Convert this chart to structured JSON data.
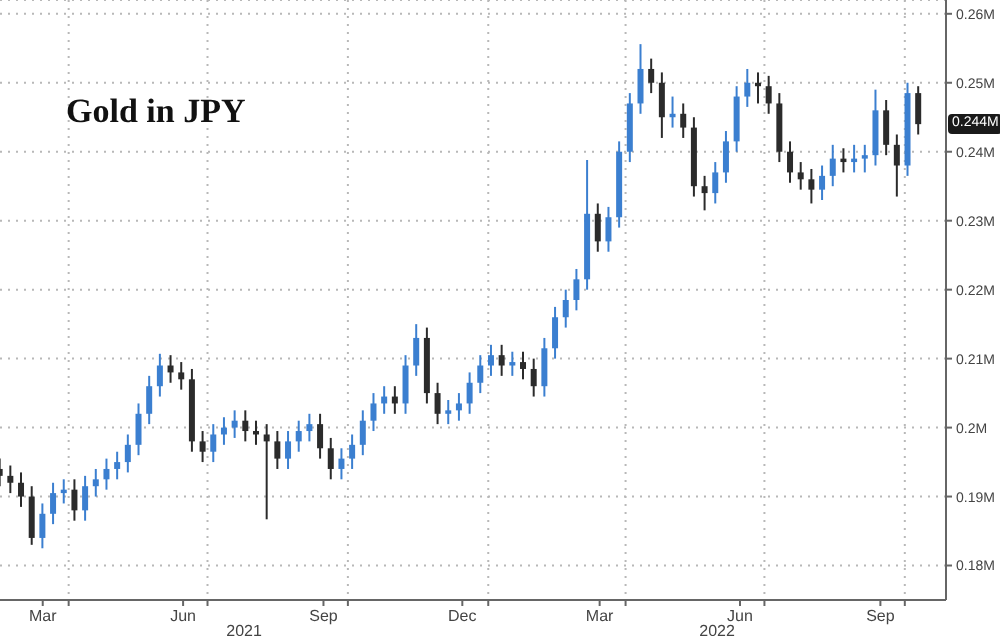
{
  "chart_data": {
    "type": "candlestick",
    "title": "Gold in JPY",
    "x": [
      "2021-02-15",
      "2021-02-22",
      "2021-03-01",
      "2021-03-08",
      "2021-03-15",
      "2021-03-22",
      "2021-03-29",
      "2021-04-05",
      "2021-04-12",
      "2021-04-19",
      "2021-04-26",
      "2021-05-03",
      "2021-05-10",
      "2021-05-17",
      "2021-05-24",
      "2021-05-31",
      "2021-06-07",
      "2021-06-14",
      "2021-06-21",
      "2021-06-28",
      "2021-07-05",
      "2021-07-12",
      "2021-07-19",
      "2021-07-26",
      "2021-08-02",
      "2021-08-09",
      "2021-08-16",
      "2021-08-23",
      "2021-08-30",
      "2021-09-06",
      "2021-09-13",
      "2021-09-20",
      "2021-09-27",
      "2021-10-04",
      "2021-10-11",
      "2021-10-18",
      "2021-10-25",
      "2021-11-01",
      "2021-11-08",
      "2021-11-15",
      "2021-11-22",
      "2021-11-29",
      "2021-12-06",
      "2021-12-13",
      "2021-12-20",
      "2021-12-27",
      "2022-01-03",
      "2022-01-10",
      "2022-01-17",
      "2022-01-24",
      "2022-01-31",
      "2022-02-07",
      "2022-02-14",
      "2022-02-21",
      "2022-02-28",
      "2022-03-07",
      "2022-03-14",
      "2022-03-21",
      "2022-03-28",
      "2022-04-04",
      "2022-04-11",
      "2022-04-18",
      "2022-04-25",
      "2022-05-02",
      "2022-05-09",
      "2022-05-16",
      "2022-05-23",
      "2022-05-30",
      "2022-06-06",
      "2022-06-13",
      "2022-06-20",
      "2022-06-27",
      "2022-07-04",
      "2022-07-11",
      "2022-07-18",
      "2022-07-25",
      "2022-08-01",
      "2022-08-08",
      "2022-08-15",
      "2022-08-22",
      "2022-08-29",
      "2022-09-05",
      "2022-09-12",
      "2022-09-19",
      "2022-09-26",
      "2022-10-03",
      "2022-10-10"
    ],
    "ohlc": [
      [
        194000,
        195500,
        191500,
        193000
      ],
      [
        193000,
        194500,
        190500,
        192000
      ],
      [
        192000,
        193500,
        188500,
        190000
      ],
      [
        190000,
        191500,
        183000,
        184000
      ],
      [
        184000,
        189000,
        182500,
        187500
      ],
      [
        187500,
        192000,
        186000,
        190500
      ],
      [
        190500,
        192500,
        189000,
        191000
      ],
      [
        191000,
        192500,
        186500,
        188000
      ],
      [
        188000,
        193000,
        186500,
        191500
      ],
      [
        191500,
        194000,
        190000,
        192500
      ],
      [
        192500,
        195500,
        191000,
        194000
      ],
      [
        194000,
        196500,
        192500,
        195000
      ],
      [
        195000,
        199000,
        193500,
        197500
      ],
      [
        197500,
        203500,
        196000,
        202000
      ],
      [
        202000,
        207500,
        200500,
        206000
      ],
      [
        206000,
        210700,
        204500,
        209000
      ],
      [
        209000,
        210500,
        206500,
        208000
      ],
      [
        208000,
        209500,
        205500,
        207000
      ],
      [
        207000,
        208500,
        196500,
        198000
      ],
      [
        198000,
        199500,
        195000,
        196500
      ],
      [
        196500,
        200500,
        195000,
        199000
      ],
      [
        199000,
        201500,
        197500,
        200000
      ],
      [
        200000,
        202500,
        198500,
        201000
      ],
      [
        201000,
        202500,
        198000,
        199500
      ],
      [
        199500,
        201000,
        197500,
        199000
      ],
      [
        199000,
        200500,
        186700,
        198000
      ],
      [
        198000,
        199500,
        194000,
        195500
      ],
      [
        195500,
        199500,
        194000,
        198000
      ],
      [
        198000,
        201000,
        196500,
        199500
      ],
      [
        199500,
        202000,
        198000,
        200500
      ],
      [
        200500,
        202000,
        195500,
        197000
      ],
      [
        197000,
        198500,
        192500,
        194000
      ],
      [
        194000,
        197000,
        192500,
        195500
      ],
      [
        195500,
        199000,
        194000,
        197500
      ],
      [
        197500,
        202500,
        196000,
        201000
      ],
      [
        201000,
        205000,
        199500,
        203500
      ],
      [
        203500,
        206000,
        202000,
        204500
      ],
      [
        204500,
        206000,
        202000,
        203500
      ],
      [
        203500,
        210500,
        202000,
        209000
      ],
      [
        209000,
        215000,
        207500,
        213000
      ],
      [
        213000,
        214500,
        203500,
        205000
      ],
      [
        205000,
        206500,
        200500,
        202000
      ],
      [
        202000,
        204000,
        200500,
        202500
      ],
      [
        202500,
        205000,
        201000,
        203500
      ],
      [
        203500,
        208000,
        202000,
        206500
      ],
      [
        206500,
        210500,
        205000,
        209000
      ],
      [
        209000,
        212000,
        207500,
        210500
      ],
      [
        210500,
        212000,
        207500,
        209000
      ],
      [
        209000,
        211000,
        207500,
        209500
      ],
      [
        209500,
        211000,
        207000,
        208500
      ],
      [
        208500,
        210000,
        204500,
        206000
      ],
      [
        206000,
        213000,
        204500,
        211500
      ],
      [
        211500,
        217500,
        210000,
        216000
      ],
      [
        216000,
        220000,
        214500,
        218500
      ],
      [
        218500,
        223000,
        217000,
        221500
      ],
      [
        221500,
        238800,
        220000,
        231000
      ],
      [
        231000,
        232500,
        225500,
        227000
      ],
      [
        227000,
        232000,
        225500,
        230500
      ],
      [
        230500,
        241500,
        229000,
        240000
      ],
      [
        240000,
        248500,
        238500,
        247000
      ],
      [
        247000,
        255600,
        245500,
        252000
      ],
      [
        252000,
        253500,
        248500,
        250000
      ],
      [
        250000,
        251500,
        242000,
        245000
      ],
      [
        245000,
        248000,
        243500,
        245500
      ],
      [
        245500,
        247000,
        242000,
        243500
      ],
      [
        243500,
        245000,
        233500,
        235000
      ],
      [
        235000,
        236500,
        231500,
        234000
      ],
      [
        234000,
        238500,
        232500,
        237000
      ],
      [
        237000,
        243000,
        235500,
        241500
      ],
      [
        241500,
        249500,
        240000,
        248000
      ],
      [
        248000,
        252000,
        246500,
        250000
      ],
      [
        250000,
        251500,
        247000,
        249500
      ],
      [
        249500,
        251000,
        245500,
        247000
      ],
      [
        247000,
        248500,
        238500,
        240000
      ],
      [
        240000,
        241500,
        235500,
        237000
      ],
      [
        237000,
        238500,
        234500,
        236000
      ],
      [
        236000,
        237500,
        232500,
        234500
      ],
      [
        234500,
        238000,
        233000,
        236500
      ],
      [
        236500,
        241000,
        235000,
        239000
      ],
      [
        239000,
        240500,
        237000,
        238500
      ],
      [
        238500,
        241000,
        237000,
        239000
      ],
      [
        239000,
        241000,
        237000,
        239500
      ],
      [
        239500,
        249000,
        238000,
        246000
      ],
      [
        246000,
        247500,
        239500,
        241000
      ],
      [
        241000,
        242500,
        233500,
        238000
      ],
      [
        238000,
        250000,
        236500,
        248500
      ],
      [
        248500,
        249500,
        242500,
        244000
      ]
    ],
    "colors": [
      "#2b2b2b",
      "#2b2b2b",
      "#2b2b2b",
      "#2b2b2b",
      "#3b7fd0",
      "#3b7fd0",
      "#3b7fd0",
      "#2b2b2b",
      "#3b7fd0",
      "#3b7fd0",
      "#3b7fd0",
      "#3b7fd0",
      "#3b7fd0",
      "#3b7fd0",
      "#3b7fd0",
      "#3b7fd0",
      "#2b2b2b",
      "#2b2b2b",
      "#2b2b2b",
      "#2b2b2b",
      "#3b7fd0",
      "#3b7fd0",
      "#3b7fd0",
      "#2b2b2b",
      "#2b2b2b",
      "#2b2b2b",
      "#2b2b2b",
      "#3b7fd0",
      "#3b7fd0",
      "#3b7fd0",
      "#2b2b2b",
      "#2b2b2b",
      "#3b7fd0",
      "#3b7fd0",
      "#3b7fd0",
      "#3b7fd0",
      "#3b7fd0",
      "#2b2b2b",
      "#3b7fd0",
      "#3b7fd0",
      "#2b2b2b",
      "#2b2b2b",
      "#3b7fd0",
      "#3b7fd0",
      "#3b7fd0",
      "#3b7fd0",
      "#3b7fd0",
      "#2b2b2b",
      "#3b7fd0",
      "#2b2b2b",
      "#2b2b2b",
      "#3b7fd0",
      "#3b7fd0",
      "#3b7fd0",
      "#3b7fd0",
      "#3b7fd0",
      "#2b2b2b",
      "#3b7fd0",
      "#3b7fd0",
      "#3b7fd0",
      "#3b7fd0",
      "#2b2b2b",
      "#2b2b2b",
      "#3b7fd0",
      "#2b2b2b",
      "#2b2b2b",
      "#2b2b2b",
      "#3b7fd0",
      "#3b7fd0",
      "#3b7fd0",
      "#3b7fd0",
      "#2b2b2b",
      "#2b2b2b",
      "#2b2b2b",
      "#2b2b2b",
      "#2b2b2b",
      "#2b2b2b",
      "#3b7fd0",
      "#3b7fd0",
      "#2b2b2b",
      "#3b7fd0",
      "#3b7fd0",
      "#3b7fd0",
      "#2b2b2b",
      "#2b2b2b",
      "#3b7fd0",
      "#2b2b2b"
    ],
    "xlim": [
      "2021-02-15",
      "2022-10-28"
    ],
    "xticks": [
      {
        "value": "2021-03-15",
        "label": "Mar"
      },
      {
        "value": "2021-04-01",
        "label": null
      },
      {
        "value": "2021-06-15",
        "label": "Jun"
      },
      {
        "value": "2021-07-01",
        "label": null
      },
      {
        "value": "2021-09-15",
        "label": "Sep"
      },
      {
        "value": "2021-10-01",
        "label": null
      },
      {
        "value": "2021-12-15",
        "label": "Dec"
      },
      {
        "value": "2022-01-01",
        "label": null
      },
      {
        "value": "2022-03-15",
        "label": "Mar"
      },
      {
        "value": "2022-04-01",
        "label": null
      },
      {
        "value": "2022-06-15",
        "label": "Jun"
      },
      {
        "value": "2022-07-01",
        "label": null
      },
      {
        "value": "2022-09-15",
        "label": "Sep"
      },
      {
        "value": "2022-10-01",
        "label": null
      }
    ],
    "ylim": [
      175000,
      262000
    ],
    "yticks": [
      {
        "value": 180000,
        "label": "0.18M"
      },
      {
        "value": 190000,
        "label": "0.19M"
      },
      {
        "value": 200000,
        "label": "0.2M"
      },
      {
        "value": 210000,
        "label": "0.21M"
      },
      {
        "value": 220000,
        "label": "0.22M"
      },
      {
        "value": 230000,
        "label": "0.23M"
      },
      {
        "value": 240000,
        "label": "0.24M"
      },
      {
        "value": 250000,
        "label": "0.25M"
      },
      {
        "value": 260000,
        "label": "0.26M"
      }
    ],
    "grid": true,
    "annotations": [
      "2021",
      "2022",
      {
        "text": "0.244M",
        "y": 244000
      }
    ]
  }
}
